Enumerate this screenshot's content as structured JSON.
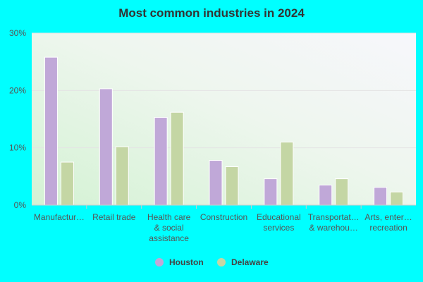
{
  "chart_data": {
    "type": "bar",
    "title": "Most common industries in 2024",
    "categories": [
      [
        "Manufactur…"
      ],
      [
        "Retail trade"
      ],
      [
        "Health care",
        "& social",
        "assistance"
      ],
      [
        "Construction"
      ],
      [
        "Educational",
        "services"
      ],
      [
        "Transportat…",
        "& warehou…"
      ],
      [
        "Arts, enter…",
        "recreation"
      ]
    ],
    "series": [
      {
        "name": "Houston",
        "color": "#c0a8d8",
        "values": [
          25.8,
          20.3,
          15.3,
          7.8,
          4.6,
          3.5,
          3.1
        ]
      },
      {
        "name": "Delaware",
        "color": "#c4d6a4",
        "values": [
          7.5,
          10.2,
          16.2,
          6.7,
          11.0,
          4.6,
          2.3
        ]
      }
    ],
    "yticks": [
      "0%",
      "10%",
      "20%",
      "30%"
    ],
    "ylim": [
      0,
      30
    ],
    "grid": true,
    "legend": "bottom"
  }
}
